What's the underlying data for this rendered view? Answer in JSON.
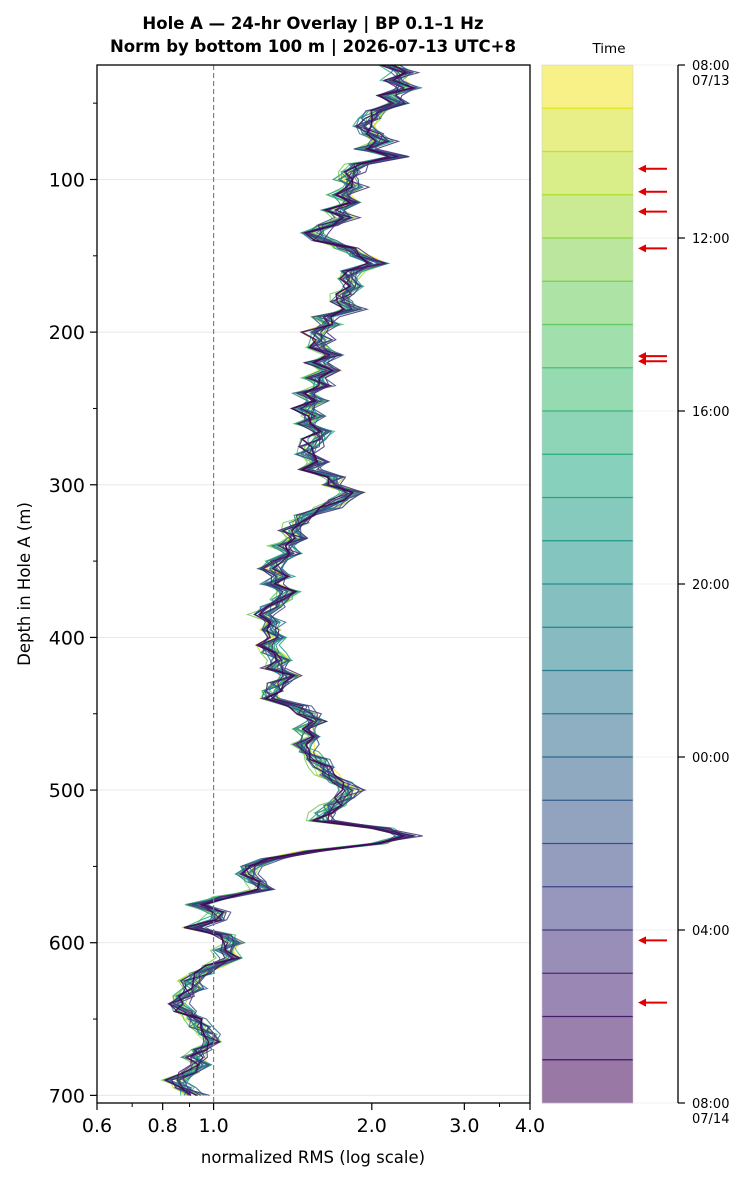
{
  "titles": {
    "line1": "Hole A — 24-hr Overlay  |  BP 0.1–1 Hz",
    "line2": "Norm by bottom 100 m  |  2026-07-13 UTC+8"
  },
  "chart_data": {
    "type": "line",
    "xlabel": "normalized RMS  (log scale)",
    "ylabel": "Depth in Hole A (m)",
    "x_scale": "log",
    "xlim": [
      0.6,
      4.0
    ],
    "ylim": [
      705,
      25
    ],
    "y_inverted": true,
    "x_ticks": [
      "0.6",
      "0.8",
      "1.0",
      "2.0",
      "3.0",
      "4.0"
    ],
    "y_ticks": [
      "100",
      "200",
      "300",
      "400",
      "500",
      "600",
      "700"
    ],
    "reference_line_x": 1.0,
    "grid": "horizontal",
    "series_count": 24,
    "colormap": "viridis (yellow = 08:00 07/13, dark purple = 08:00 07/14)",
    "profile": {
      "depth": [
        25,
        30,
        35,
        40,
        45,
        50,
        55,
        60,
        65,
        70,
        75,
        80,
        85,
        90,
        95,
        100,
        105,
        110,
        115,
        120,
        125,
        130,
        135,
        140,
        145,
        150,
        155,
        160,
        165,
        170,
        175,
        180,
        185,
        190,
        195,
        200,
        205,
        210,
        215,
        220,
        225,
        230,
        235,
        240,
        245,
        250,
        255,
        260,
        265,
        270,
        275,
        280,
        285,
        290,
        295,
        300,
        305,
        310,
        315,
        320,
        325,
        330,
        335,
        340,
        345,
        350,
        355,
        360,
        365,
        370,
        375,
        380,
        385,
        390,
        395,
        400,
        405,
        410,
        415,
        420,
        425,
        430,
        435,
        440,
        445,
        450,
        455,
        460,
        465,
        470,
        475,
        480,
        485,
        490,
        495,
        500,
        505,
        510,
        515,
        520,
        525,
        530,
        535,
        540,
        545,
        550,
        555,
        560,
        565,
        570,
        575,
        580,
        585,
        590,
        595,
        600,
        605,
        610,
        615,
        620,
        625,
        630,
        635,
        640,
        645,
        650,
        655,
        660,
        665,
        670,
        675,
        680,
        685,
        690,
        695,
        700
      ],
      "rms": [
        2.18,
        2.3,
        2.2,
        2.35,
        2.15,
        2.25,
        2.05,
        2.0,
        1.95,
        2.0,
        2.1,
        1.93,
        2.25,
        1.9,
        1.85,
        1.78,
        1.85,
        1.75,
        1.82,
        1.7,
        1.78,
        1.65,
        1.55,
        1.62,
        1.8,
        1.9,
        2.05,
        1.85,
        1.8,
        1.85,
        1.78,
        1.75,
        1.85,
        1.62,
        1.68,
        1.55,
        1.62,
        1.58,
        1.7,
        1.56,
        1.68,
        1.55,
        1.62,
        1.5,
        1.58,
        1.48,
        1.55,
        1.5,
        1.62,
        1.55,
        1.52,
        1.5,
        1.6,
        1.52,
        1.72,
        1.68,
        1.85,
        1.75,
        1.65,
        1.5,
        1.45,
        1.4,
        1.45,
        1.35,
        1.42,
        1.32,
        1.28,
        1.35,
        1.28,
        1.4,
        1.35,
        1.3,
        1.24,
        1.3,
        1.28,
        1.32,
        1.27,
        1.3,
        1.35,
        1.3,
        1.4,
        1.33,
        1.3,
        1.28,
        1.45,
        1.5,
        1.58,
        1.48,
        1.55,
        1.5,
        1.52,
        1.58,
        1.62,
        1.65,
        1.75,
        1.82,
        1.78,
        1.7,
        1.62,
        1.6,
        2.1,
        2.35,
        2.05,
        1.55,
        1.3,
        1.18,
        1.15,
        1.2,
        1.25,
        1.05,
        0.93,
        1.02,
        1.0,
        0.92,
        1.05,
        1.1,
        1.05,
        1.08,
        1.0,
        0.95,
        0.9,
        0.92,
        0.88,
        0.85,
        0.88,
        0.92,
        0.95,
        0.98,
        1.0,
        0.95,
        0.92,
        0.95,
        0.9,
        0.85,
        0.88,
        0.92
      ]
    },
    "arrows_depth": [
      93,
      108,
      121,
      145,
      212,
      215,
      600,
      640
    ]
  },
  "colorbar": {
    "title": "Time",
    "ticks": [
      {
        "label": "08:00",
        "sub": "07/13",
        "hours": 0
      },
      {
        "label": "12:00",
        "sub": "",
        "hours": 4
      },
      {
        "label": "16:00",
        "sub": "",
        "hours": 8
      },
      {
        "label": "20:00",
        "sub": "",
        "hours": 12
      },
      {
        "label": "00:00",
        "sub": "",
        "hours": 16
      },
      {
        "label": "04:00",
        "sub": "",
        "hours": 20
      },
      {
        "label": "08:00",
        "sub": "07/14",
        "hours": 24
      }
    ],
    "bands": 24,
    "arrows_hours": [
      2.4,
      2.93,
      3.39,
      4.24,
      6.73,
      6.85,
      20.24,
      21.68
    ],
    "arrow_color": "#e00000"
  }
}
